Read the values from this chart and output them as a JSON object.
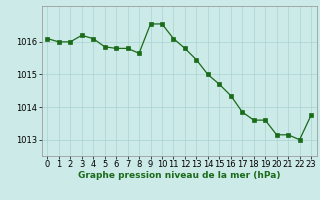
{
  "x": [
    0,
    1,
    2,
    3,
    4,
    5,
    6,
    7,
    8,
    9,
    10,
    11,
    12,
    13,
    14,
    15,
    16,
    17,
    18,
    19,
    20,
    21,
    22,
    23
  ],
  "y": [
    1016.1,
    1016.0,
    1016.0,
    1016.2,
    1016.1,
    1015.85,
    1015.8,
    1015.8,
    1015.65,
    1016.55,
    1016.55,
    1016.1,
    1015.8,
    1015.45,
    1015.0,
    1014.7,
    1014.35,
    1013.85,
    1013.6,
    1013.6,
    1013.15,
    1013.15,
    1013.0,
    1013.75
  ],
  "line_color": "#1a6b1a",
  "marker": "s",
  "marker_size": 2.5,
  "background_color": "#cceae8",
  "grid_color": "#aad4d0",
  "xlabel": "Graphe pression niveau de la mer (hPa)",
  "xlabel_fontsize": 6.5,
  "tick_fontsize": 6.0,
  "ylim": [
    1012.5,
    1017.1
  ],
  "yticks": [
    1013,
    1014,
    1015,
    1016
  ],
  "xlim": [
    -0.5,
    23.5
  ],
  "fig_width": 3.2,
  "fig_height": 2.0,
  "dpi": 100
}
